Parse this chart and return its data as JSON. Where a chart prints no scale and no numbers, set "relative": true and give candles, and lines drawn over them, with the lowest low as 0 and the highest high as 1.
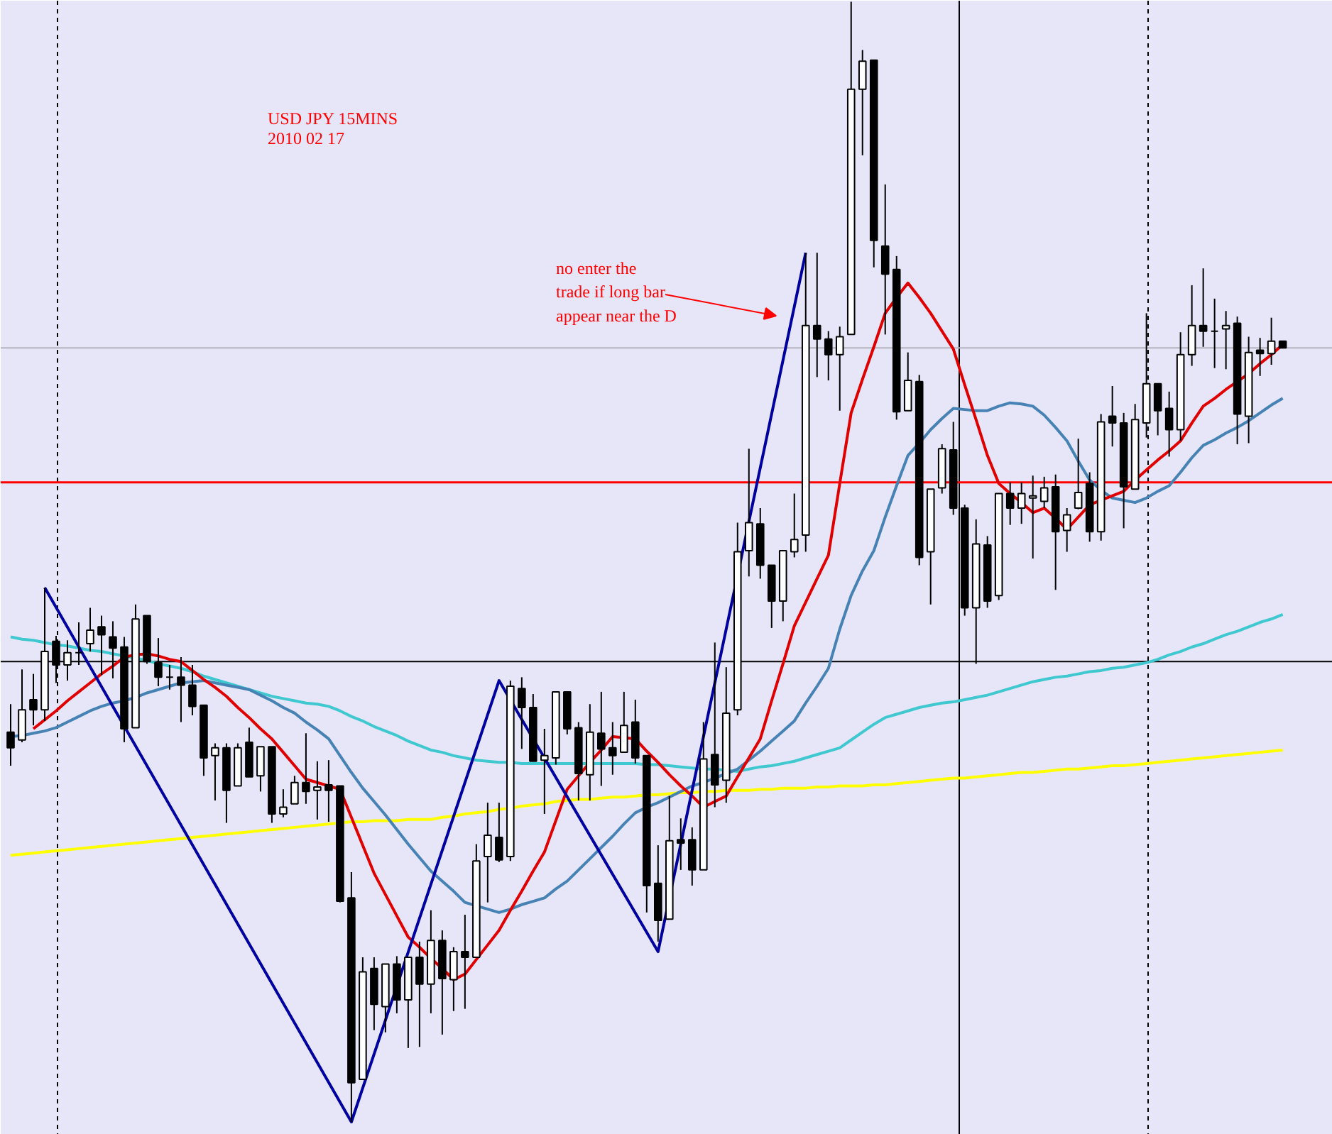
{
  "chart_data": {
    "type": "candlestick",
    "title": "USD JPY 15MINS",
    "subtitle": "2010 02 17",
    "relative": true,
    "tick_labels": false,
    "annotations": [
      "no enter the\ntrade if long bar\nappear near the D"
    ],
    "categories": [
      null,
      null,
      null,
      null,
      null,
      null,
      null,
      null,
      null,
      null,
      null,
      null,
      null,
      null,
      null,
      null,
      null,
      null,
      null,
      null,
      null,
      null,
      null,
      null,
      null,
      null,
      null,
      null,
      null,
      null,
      null,
      null,
      null,
      null,
      null,
      null,
      null,
      null,
      null,
      null,
      null,
      null,
      null,
      null,
      null,
      null,
      null,
      null,
      null,
      null,
      null,
      null,
      null,
      null,
      null,
      null,
      null,
      null,
      null,
      null,
      null,
      null,
      null,
      null,
      null,
      null,
      null,
      null,
      null,
      null,
      null,
      null,
      null,
      null,
      null,
      null,
      null,
      null,
      null,
      null,
      null,
      null,
      null,
      null,
      null,
      null,
      null,
      null,
      null,
      null,
      null,
      null,
      null,
      null,
      null,
      null,
      null,
      null,
      null,
      null,
      null,
      null,
      null,
      null,
      null,
      null,
      null,
      null,
      null,
      null,
      null,
      null,
      null
    ],
    "ohlc": [
      [
        0.348,
        0.373,
        0.318,
        0.334
      ],
      [
        0.341,
        0.404,
        0.339,
        0.368
      ],
      [
        0.377,
        0.4,
        0.354,
        0.368
      ],
      [
        0.368,
        0.477,
        0.358,
        0.42
      ],
      [
        0.429,
        0.434,
        0.392,
        0.408
      ],
      [
        0.408,
        0.43,
        0.394,
        0.419
      ],
      [
        0.419,
        0.446,
        0.408,
        0.419
      ],
      [
        0.427,
        0.459,
        0.42,
        0.439
      ],
      [
        0.442,
        0.452,
        0.399,
        0.435
      ],
      [
        0.433,
        0.447,
        0.396,
        0.423
      ],
      [
        0.424,
        0.433,
        0.339,
        0.351
      ],
      [
        0.352,
        0.462,
        0.352,
        0.449
      ],
      [
        0.452,
        0.452,
        0.409,
        0.411
      ],
      [
        0.41,
        0.432,
        0.389,
        0.397
      ],
      [
        0.397,
        0.408,
        0.386,
        0.397
      ],
      [
        0.397,
        0.415,
        0.357,
        0.39
      ],
      [
        0.39,
        0.408,
        0.363,
        0.371
      ],
      [
        0.372,
        0.372,
        0.309,
        0.325
      ],
      [
        0.327,
        0.338,
        0.287,
        0.334
      ],
      [
        0.334,
        0.338,
        0.267,
        0.296
      ],
      [
        0.3,
        0.338,
        0.3,
        0.334
      ],
      [
        0.339,
        0.352,
        0.308,
        0.308
      ],
      [
        0.309,
        0.335,
        0.295,
        0.335
      ],
      [
        0.335,
        0.335,
        0.267,
        0.275
      ],
      [
        0.275,
        0.297,
        0.272,
        0.281
      ],
      [
        0.284,
        0.309,
        0.284,
        0.303
      ],
      [
        0.303,
        0.347,
        0.284,
        0.295
      ],
      [
        0.296,
        0.322,
        0.27,
        0.299
      ],
      [
        0.301,
        0.323,
        0.268,
        0.296
      ],
      [
        0.3,
        0.3,
        0.196,
        0.197
      ],
      [
        0.2,
        0.223,
        0,
        0.035
      ],
      [
        0.038,
        0.147,
        0.038,
        0.134
      ],
      [
        0.137,
        0.147,
        0.082,
        0.105
      ],
      [
        0.103,
        0.141,
        0.08,
        0.141
      ],
      [
        0.141,
        0.148,
        0.097,
        0.109
      ],
      [
        0.109,
        0.147,
        0.066,
        0.147
      ],
      [
        0.147,
        0.161,
        0.067,
        0.123
      ],
      [
        0.123,
        0.189,
        0.097,
        0.162
      ],
      [
        0.162,
        0.171,
        0.078,
        0.128
      ],
      [
        0.127,
        0.156,
        0.099,
        0.152
      ],
      [
        0.152,
        0.185,
        0.101,
        0.147
      ],
      [
        0.147,
        0.248,
        0.147,
        0.233
      ],
      [
        0.237,
        0.285,
        0.196,
        0.256
      ],
      [
        0.254,
        0.285,
        0.232,
        0.234
      ],
      [
        0.237,
        0.394,
        0.233,
        0.389
      ],
      [
        0.387,
        0.397,
        0.333,
        0.37
      ],
      [
        0.37,
        0.382,
        0.322,
        0.322
      ],
      [
        0.323,
        0.351,
        0.275,
        0.327
      ],
      [
        0.325,
        0.384,
        0.319,
        0.384
      ],
      [
        0.384,
        0.384,
        0.346,
        0.351
      ],
      [
        0.352,
        0.357,
        0.287,
        0.311
      ],
      [
        0.31,
        0.373,
        0.287,
        0.348
      ],
      [
        0.347,
        0.384,
        0.3,
        0.333
      ],
      [
        0.334,
        0.357,
        0.31,
        0.327
      ],
      [
        0.33,
        0.384,
        0.33,
        0.354
      ],
      [
        0.357,
        0.377,
        0.32,
        0.325
      ],
      [
        0.327,
        0.327,
        0.187,
        0.211
      ],
      [
        0.213,
        0.247,
        0.161,
        0.18
      ],
      [
        0.181,
        0.291,
        0.181,
        0.251
      ],
      [
        0.252,
        0.271,
        0.225,
        0.249
      ],
      [
        0.252,
        0.263,
        0.211,
        0.225
      ],
      [
        0.225,
        0.357,
        0.225,
        0.324
      ],
      [
        0.328,
        0.428,
        0.281,
        0.301
      ],
      [
        0.305,
        0.406,
        0.285,
        0.365
      ],
      [
        0.368,
        0.535,
        0.363,
        0.509
      ],
      [
        0.51,
        0.601,
        0.487,
        0.535
      ],
      [
        0.534,
        0.548,
        0.485,
        0.497
      ],
      [
        0.497,
        0.497,
        0.441,
        0.465
      ],
      [
        0.465,
        0.51,
        0.447,
        0.51
      ],
      [
        0.509,
        0.561,
        0.504,
        0.52
      ],
      [
        0.524,
        0.776,
        0.509,
        0.711
      ],
      [
        0.711,
        0.776,
        0.665,
        0.699
      ],
      [
        0.699,
        0.706,
        0.662,
        0.685
      ],
      [
        0.685,
        0.71,
        0.635,
        0.701
      ],
      [
        0.703,
        1,
        0.703,
        0.922
      ],
      [
        0.922,
        0.957,
        0.863,
        0.947
      ],
      [
        0.948,
        0.948,
        0.763,
        0.787
      ],
      [
        0.782,
        0.837,
        0.703,
        0.757
      ],
      [
        0.761,
        0.773,
        0.627,
        0.634
      ],
      [
        0.635,
        0.687,
        0.635,
        0.662
      ],
      [
        0.661,
        0.667,
        0.497,
        0.504
      ],
      [
        0.509,
        0.565,
        0.462,
        0.565
      ],
      [
        0.566,
        0.605,
        0.561,
        0.601
      ],
      [
        0.6,
        0.625,
        0.542,
        0.548
      ],
      [
        0.548,
        0.551,
        0.452,
        0.459
      ],
      [
        0.459,
        0.538,
        0.409,
        0.516
      ],
      [
        0.515,
        0.523,
        0.459,
        0.465
      ],
      [
        0.47,
        0.561,
        0.466,
        0.561
      ],
      [
        0.561,
        0.571,
        0.533,
        0.548
      ],
      [
        0.548,
        0.571,
        0.534,
        0.561
      ],
      [
        0.557,
        0.577,
        0.503,
        0.559
      ],
      [
        0.554,
        0.576,
        0.548,
        0.566
      ],
      [
        0.567,
        0.578,
        0.475,
        0.527
      ],
      [
        0.528,
        0.548,
        0.509,
        0.542
      ],
      [
        0.548,
        0.61,
        0.547,
        0.562
      ],
      [
        0.57,
        0.58,
        0.518,
        0.527
      ],
      [
        0.527,
        0.632,
        0.519,
        0.625
      ],
      [
        0.63,
        0.657,
        0.603,
        0.624
      ],
      [
        0.624,
        0.633,
        0.53,
        0.567
      ],
      [
        0.565,
        0.641,
        0.565,
        0.627
      ],
      [
        0.624,
        0.722,
        0.611,
        0.659
      ],
      [
        0.659,
        0.659,
        0.613,
        0.635
      ],
      [
        0.637,
        0.652,
        0.594,
        0.618
      ],
      [
        0.618,
        0.705,
        0.608,
        0.685
      ],
      [
        0.685,
        0.747,
        0.675,
        0.711
      ],
      [
        0.711,
        0.762,
        0.692,
        0.706
      ],
      [
        0.706,
        0.735,
        0.673,
        0.706
      ],
      [
        0.708,
        0.724,
        0.672,
        0.711
      ],
      [
        0.713,
        0.719,
        0.605,
        0.632
      ],
      [
        0.63,
        0.701,
        0.606,
        0.687
      ],
      [
        0.689,
        0.7,
        0.666,
        0.686
      ],
      [
        0.686,
        0.718,
        0.676,
        0.697
      ],
      [
        0.697,
        0.697,
        0.691,
        0.691
      ]
    ],
    "series": [
      {
        "type": "line",
        "color": "#ffff00",
        "values": [
          0.238,
          0.239,
          0.24,
          0.241,
          0.242,
          0.243,
          0.244,
          0.245,
          0.246,
          0.247,
          0.248,
          0.249,
          0.25,
          0.251,
          0.252,
          0.253,
          0.254,
          0.255,
          0.256,
          0.257,
          0.258,
          0.259,
          0.26,
          0.261,
          0.262,
          0.263,
          0.264,
          0.265,
          0.266,
          0.267,
          0.268,
          0.268,
          0.269,
          0.269,
          0.269,
          0.27,
          0.27,
          0.27,
          0.272,
          0.273,
          0.275,
          0.276,
          0.277,
          0.279,
          0.28,
          0.282,
          0.283,
          0.284,
          0.286,
          0.287,
          0.288,
          0.288,
          0.289,
          0.29,
          0.29,
          0.291,
          0.292,
          0.292,
          0.293,
          0.294,
          0.294,
          0.295,
          0.295,
          0.296,
          0.296,
          0.296,
          0.297,
          0.297,
          0.298,
          0.298,
          0.298,
          0.299,
          0.299,
          0.3,
          0.3,
          0.3,
          0.301,
          0.301,
          0.302,
          0.303,
          0.304,
          0.305,
          0.306,
          0.307,
          0.307,
          0.308,
          0.309,
          0.31,
          0.311,
          0.312,
          0.312,
          0.313,
          0.314,
          0.315,
          0.315,
          0.316,
          0.317,
          0.318,
          0.318,
          0.319,
          0.32,
          0.321,
          0.322,
          0.323,
          0.324,
          0.325,
          0.326,
          0.327,
          0.328,
          0.329,
          0.33,
          0.331,
          0.332
        ]
      },
      {
        "type": "line",
        "color": "#40c8d0",
        "values": [
          0.433,
          0.431,
          0.43,
          0.428,
          0.426,
          0.425,
          0.423,
          0.421,
          0.42,
          0.418,
          0.416,
          0.414,
          0.412,
          0.409,
          0.407,
          0.405,
          0.402,
          0.398,
          0.395,
          0.392,
          0.389,
          0.386,
          0.383,
          0.38,
          0.378,
          0.376,
          0.374,
          0.373,
          0.371,
          0.367,
          0.362,
          0.358,
          0.353,
          0.349,
          0.345,
          0.34,
          0.336,
          0.332,
          0.33,
          0.327,
          0.325,
          0.323,
          0.322,
          0.321,
          0.321,
          0.32,
          0.32,
          0.32,
          0.32,
          0.32,
          0.32,
          0.32,
          0.32,
          0.32,
          0.32,
          0.32,
          0.319,
          0.319,
          0.318,
          0.317,
          0.316,
          0.315,
          0.315,
          0.314,
          0.313,
          0.315,
          0.317,
          0.318,
          0.32,
          0.322,
          0.325,
          0.328,
          0.331,
          0.334,
          0.341,
          0.348,
          0.355,
          0.361,
          0.364,
          0.367,
          0.37,
          0.372,
          0.374,
          0.375,
          0.377,
          0.379,
          0.381,
          0.384,
          0.387,
          0.39,
          0.393,
          0.395,
          0.397,
          0.398,
          0.4,
          0.402,
          0.403,
          0.405,
          0.406,
          0.408,
          0.41,
          0.413,
          0.417,
          0.42,
          0.424,
          0.427,
          0.431,
          0.435,
          0.438,
          0.442,
          0.446,
          0.449,
          0.453
        ]
      },
      {
        "type": "line",
        "color": "#4682b4",
        "values": [
          0.344,
          0.345,
          0.347,
          0.349,
          0.352,
          0.357,
          0.362,
          0.367,
          0.371,
          0.374,
          0.376,
          0.379,
          0.383,
          0.386,
          0.389,
          0.392,
          0.393,
          0.394,
          0.392,
          0.39,
          0.388,
          0.386,
          0.381,
          0.376,
          0.37,
          0.365,
          0.357,
          0.35,
          0.342,
          0.327,
          0.312,
          0.298,
          0.286,
          0.274,
          0.261,
          0.248,
          0.236,
          0.224,
          0.215,
          0.206,
          0.196,
          0.193,
          0.19,
          0.187,
          0.19,
          0.194,
          0.197,
          0.2,
          0.208,
          0.215,
          0.225,
          0.235,
          0.245,
          0.255,
          0.266,
          0.276,
          0.281,
          0.285,
          0.29,
          0.295,
          0.3,
          0.303,
          0.307,
          0.311,
          0.315,
          0.323,
          0.331,
          0.34,
          0.349,
          0.358,
          0.374,
          0.389,
          0.405,
          0.44,
          0.47,
          0.492,
          0.51,
          0.54,
          0.568,
          0.595,
          0.606,
          0.618,
          0.628,
          0.637,
          0.636,
          0.635,
          0.635,
          0.639,
          0.642,
          0.641,
          0.639,
          0.631,
          0.62,
          0.608,
          0.59,
          0.573,
          0.564,
          0.557,
          0.555,
          0.553,
          0.557,
          0.563,
          0.568,
          0.58,
          0.593,
          0.604,
          0.609,
          0.615,
          0.62,
          0.626,
          0.633,
          0.64,
          0.646
        ]
      },
      {
        "type": "line",
        "color": "#e00000",
        "values": [
          null,
          null,
          0.351,
          0.359,
          0.367,
          0.376,
          0.384,
          0.392,
          0.4,
          0.407,
          0.415,
          0.417,
          0.418,
          0.416,
          0.413,
          0.411,
          0.403,
          0.395,
          0.388,
          0.38,
          0.37,
          0.361,
          0.351,
          0.342,
          0.33,
          0.318,
          0.306,
          0.303,
          0.3,
          0.297,
          0.272,
          0.247,
          0.222,
          0.203,
          0.184,
          0.165,
          0.156,
          0.146,
          0.137,
          0.127,
          0.132,
          0.145,
          0.158,
          0.171,
          0.189,
          0.206,
          0.224,
          0.241,
          0.269,
          0.297,
          0.309,
          0.321,
          0.332,
          0.344,
          0.343,
          0.342,
          0.331,
          0.321,
          0.31,
          0.3,
          0.291,
          0.281,
          0.286,
          0.291,
          0.308,
          0.325,
          0.342,
          0.376,
          0.409,
          0.443,
          0.464,
          0.485,
          0.506,
          0.57,
          0.633,
          0.663,
          0.692,
          0.722,
          0.736,
          0.749,
          0.736,
          0.722,
          0.706,
          0.69,
          0.658,
          0.627,
          0.595,
          0.57,
          0.561,
          0.553,
          0.544,
          0.548,
          0.539,
          0.529,
          0.54,
          0.551,
          0.555,
          0.559,
          0.563,
          0.573,
          0.582,
          0.591,
          0.599,
          0.608,
          0.624,
          0.639,
          0.646,
          0.654,
          0.661,
          0.668,
          0.677,
          0.685,
          0.694
        ]
      },
      {
        "type": "line",
        "color": "#0000a0",
        "values": [
          null,
          null,
          null,
          0.477,
          null,
          null,
          null,
          null,
          null,
          null,
          null,
          null,
          null,
          null,
          null,
          null,
          null,
          null,
          null,
          null,
          null,
          null,
          null,
          null,
          null,
          null,
          null,
          null,
          null,
          null,
          0,
          null,
          null,
          null,
          null,
          null,
          null,
          null,
          null,
          null,
          null,
          null,
          null,
          0.394,
          null,
          null,
          null,
          null,
          null,
          null,
          null,
          null,
          null,
          null,
          null,
          null,
          null,
          0.152,
          null,
          null,
          null,
          null,
          null,
          null,
          null,
          null,
          null,
          null,
          null,
          null,
          0.776,
          null,
          null,
          null,
          null,
          null,
          null,
          null,
          null,
          null,
          null,
          null,
          null,
          null,
          null,
          null,
          null,
          null,
          null,
          null,
          null,
          null,
          null,
          null,
          null,
          null,
          null,
          null,
          null,
          null,
          null,
          null,
          null,
          null,
          null,
          null,
          null,
          null,
          null,
          null,
          null,
          null,
          null
        ]
      }
    ],
    "ref_lines": [
      {
        "axis": "y",
        "value": 0.571,
        "color": "#ff0000",
        "line_style": "solid"
      },
      {
        "axis": "y",
        "value": 0.411,
        "color": "#000000",
        "line_style": "solid"
      },
      {
        "axis": "y",
        "value": 0.691,
        "color": "#b4b4c0",
        "line_style": "solid"
      }
    ],
    "grid": "x"
  }
}
